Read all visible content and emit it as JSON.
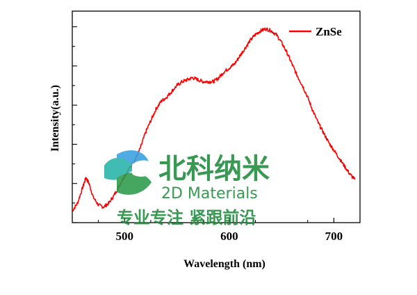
{
  "chart_data": {
    "type": "line",
    "title": "",
    "xlabel": "Wavelength (nm)",
    "ylabel": "Intensity(a.u.)",
    "xlim": [
      450,
      725
    ],
    "ylim": [
      0,
      1.08
    ],
    "x_ticks": [
      500,
      600,
      700
    ],
    "x_tick_labels": [
      "500",
      "600",
      "700"
    ],
    "y_tick_labels": "none",
    "grid": false,
    "legend": "top-right",
    "series": [
      {
        "name": "ZnSe",
        "color": "#ff0000",
        "x": [
          450,
          455,
          460,
          463,
          466,
          470,
          475,
          480,
          485,
          490,
          495,
          500,
          505,
          510,
          515,
          520,
          525,
          530,
          535,
          540,
          545,
          550,
          555,
          560,
          565,
          570,
          575,
          580,
          585,
          590,
          595,
          600,
          605,
          610,
          615,
          620,
          625,
          630,
          635,
          640,
          645,
          650,
          655,
          660,
          665,
          670,
          675,
          680,
          685,
          690,
          695,
          700,
          705,
          710,
          715,
          720
        ],
        "y": [
          0.06,
          0.1,
          0.18,
          0.23,
          0.2,
          0.13,
          0.09,
          0.08,
          0.1,
          0.14,
          0.19,
          0.24,
          0.28,
          0.32,
          0.38,
          0.46,
          0.52,
          0.58,
          0.62,
          0.64,
          0.67,
          0.7,
          0.72,
          0.73,
          0.74,
          0.73,
          0.72,
          0.72,
          0.72,
          0.74,
          0.77,
          0.79,
          0.81,
          0.85,
          0.89,
          0.93,
          0.96,
          0.98,
          0.99,
          0.98,
          0.96,
          0.92,
          0.87,
          0.81,
          0.75,
          0.7,
          0.64,
          0.57,
          0.51,
          0.46,
          0.41,
          0.37,
          0.33,
          0.29,
          0.25,
          0.22
        ]
      }
    ]
  },
  "watermark": {
    "title": "北科纳米",
    "subtitle": "2D Materials",
    "slogan": "专业专注 紧跟前沿",
    "brand_color": "#1e8a3c",
    "icon": "leaf-logo-icon"
  }
}
